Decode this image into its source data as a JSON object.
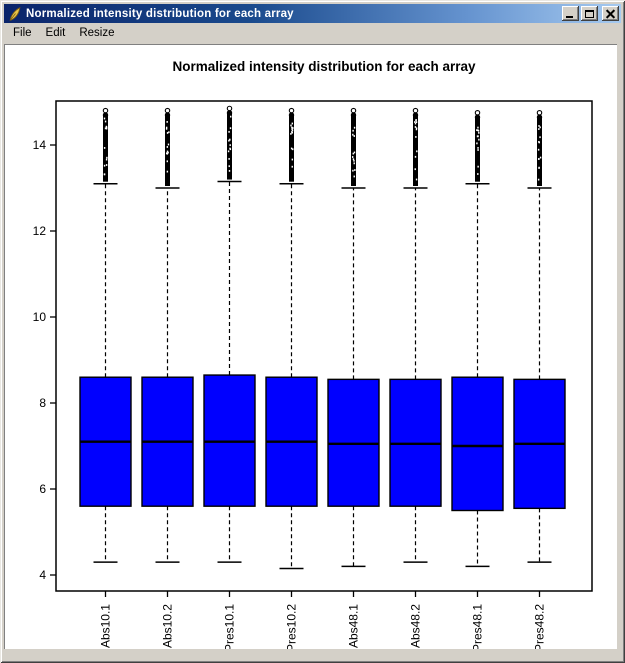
{
  "window": {
    "title": "Normalized intensity distribution for each array",
    "icons": {
      "app": "feather-icon",
      "minimize": "minimize-icon",
      "maximize": "maximize-icon",
      "close": "close-icon"
    }
  },
  "menu": {
    "items": [
      "File",
      "Edit",
      "Resize"
    ]
  },
  "colors": {
    "titlebar_gradient_start": "#0a246a",
    "titlebar_gradient_end": "#a6caf0",
    "chrome": "#d4d0c8",
    "box_fill": "#0000ff",
    "plot_foreground": "#000000",
    "plot_background": "#ffffff"
  },
  "chart_data": {
    "type": "boxplot",
    "title": "Normalized intensity distribution for each array",
    "xlabel": "",
    "ylabel": "",
    "ylim": [
      3.6,
      15.0
    ],
    "yticks": [
      4,
      6,
      8,
      10,
      12,
      14
    ],
    "grid": "off",
    "legend": "none",
    "box_fill": "#0000ff",
    "categories": [
      "Abs10.1",
      "Abs10.2",
      "Pres10.1",
      "Pres10.2",
      "Abs48.1",
      "Abs48.2",
      "Pres48.1",
      "Pres48.2"
    ],
    "series": [
      {
        "name": "Abs10.1",
        "whisker_low": 4.3,
        "q1": 5.6,
        "median": 7.1,
        "q3": 8.6,
        "whisker_high": 13.1,
        "outlier_min": 13.1,
        "outlier_max": 14.8
      },
      {
        "name": "Abs10.2",
        "whisker_low": 4.3,
        "q1": 5.6,
        "median": 7.1,
        "q3": 8.6,
        "whisker_high": 13.0,
        "outlier_min": 13.0,
        "outlier_max": 14.8
      },
      {
        "name": "Pres10.1",
        "whisker_low": 4.3,
        "q1": 5.6,
        "median": 7.1,
        "q3": 8.65,
        "whisker_high": 13.15,
        "outlier_min": 13.15,
        "outlier_max": 14.85
      },
      {
        "name": "Pres10.2",
        "whisker_low": 4.15,
        "q1": 5.6,
        "median": 7.1,
        "q3": 8.6,
        "whisker_high": 13.1,
        "outlier_min": 13.1,
        "outlier_max": 14.8
      },
      {
        "name": "Abs48.1",
        "whisker_low": 4.2,
        "q1": 5.6,
        "median": 7.05,
        "q3": 8.55,
        "whisker_high": 13.0,
        "outlier_min": 13.0,
        "outlier_max": 14.8
      },
      {
        "name": "Abs48.2",
        "whisker_low": 4.3,
        "q1": 5.6,
        "median": 7.05,
        "q3": 8.55,
        "whisker_high": 13.0,
        "outlier_min": 13.0,
        "outlier_max": 14.8
      },
      {
        "name": "Pres48.1",
        "whisker_low": 4.2,
        "q1": 5.5,
        "median": 7.0,
        "q3": 8.6,
        "whisker_high": 13.1,
        "outlier_min": 13.1,
        "outlier_max": 14.75
      },
      {
        "name": "Pres48.2",
        "whisker_low": 4.3,
        "q1": 5.55,
        "median": 7.05,
        "q3": 8.55,
        "whisker_high": 13.0,
        "outlier_min": 13.0,
        "outlier_max": 14.75
      }
    ]
  }
}
